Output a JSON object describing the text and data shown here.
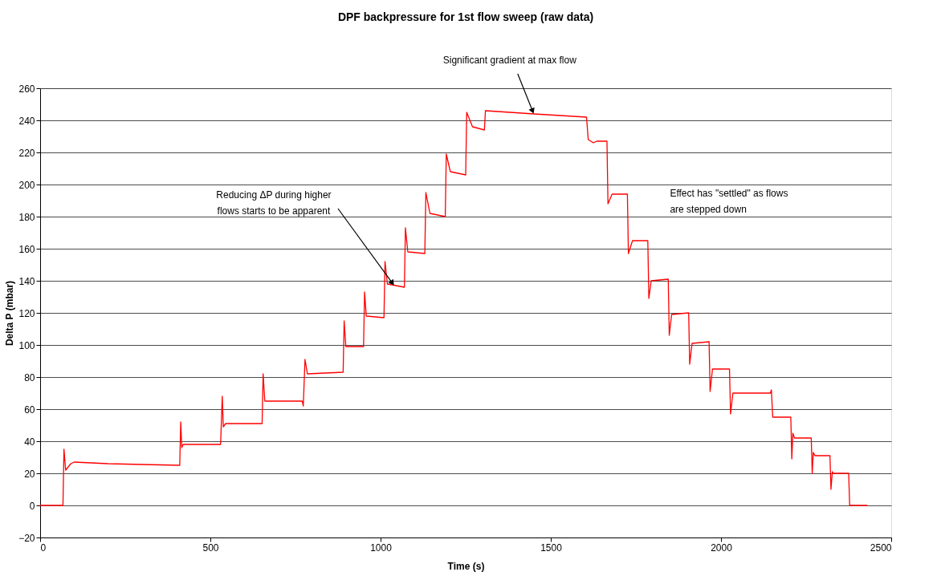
{
  "chart_data": {
    "type": "line",
    "title": "DPF backpressure for 1st flow sweep (raw data)",
    "xlabel": "Time (s)",
    "ylabel": "Delta P (mbar)",
    "x": [
      0,
      67,
      70,
      75,
      90,
      100,
      200,
      300,
      410,
      413,
      416,
      420,
      530,
      535,
      538,
      545,
      652,
      655,
      660,
      770,
      773,
      778,
      785,
      890,
      893,
      898,
      950,
      953,
      958,
      1010,
      1013,
      1020,
      1070,
      1073,
      1080,
      1130,
      1133,
      1145,
      1190,
      1193,
      1205,
      1250,
      1253,
      1270,
      1305,
      1308,
      1450,
      1605,
      1610,
      1625,
      1635,
      1665,
      1668,
      1680,
      1725,
      1728,
      1740,
      1785,
      1788,
      1795,
      1845,
      1848,
      1855,
      1905,
      1908,
      1915,
      1965,
      1968,
      1975,
      2025,
      2028,
      2035,
      2145,
      2148,
      2152,
      2205,
      2208,
      2211,
      2216,
      2265,
      2268,
      2271,
      2276,
      2320,
      2323,
      2327,
      2330,
      2375,
      2378,
      2430
    ],
    "series": [
      {
        "color": "#ff0000",
        "values": [
          0,
          0,
          35,
          22,
          26,
          27,
          26,
          25.5,
          25,
          52,
          36,
          38,
          38,
          68,
          49,
          51,
          51,
          82,
          65,
          65,
          62,
          91,
          82,
          83,
          115,
          99,
          99,
          133,
          118,
          117,
          152,
          138,
          136,
          173,
          158,
          157,
          195,
          182,
          180,
          219,
          208,
          206,
          245,
          236,
          234,
          246,
          244,
          242,
          228,
          226,
          227,
          227,
          188,
          194,
          194,
          157,
          165,
          165,
          129,
          140,
          141,
          106,
          119,
          120,
          88,
          101,
          102,
          71,
          85,
          85,
          57,
          70,
          70,
          72,
          55,
          55,
          29,
          45,
          42,
          42,
          20,
          33,
          31,
          31,
          10,
          21,
          20,
          20,
          0,
          0
        ]
      }
    ],
    "xlim": [
      0,
      2500
    ],
    "xticks": [
      0,
      500,
      1000,
      1500,
      2000,
      2500
    ],
    "ylim": [
      -20,
      260
    ],
    "yticks": [
      -20,
      0,
      20,
      40,
      60,
      80,
      100,
      120,
      140,
      160,
      180,
      200,
      220,
      240,
      260
    ],
    "grid": "y",
    "marker": "none",
    "line_style": "solid",
    "annotations": [
      {
        "text": "Significant gradient at max flow",
        "x": 1450,
        "y": 244
      },
      {
        "text": "Reducing ΔP during higher\nflows starts to be apparent",
        "x": 1040,
        "y": 137
      },
      "Effect has \"settled\" as flows\nare stepped down"
    ]
  }
}
